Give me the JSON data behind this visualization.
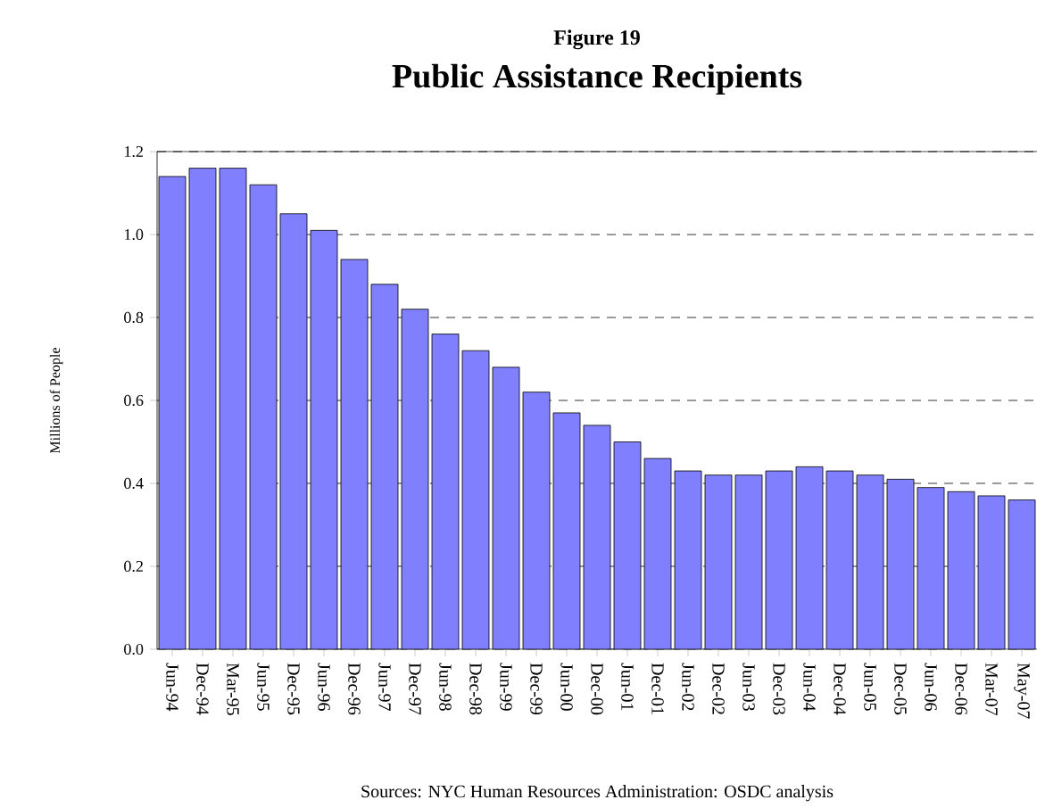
{
  "chart_data": {
    "type": "bar",
    "title": "Public Assistance Recipients",
    "subtitle": "Figure 19",
    "ylabel": "Millions of People",
    "annotations": [
      "Sources:  NYC Human Resources Administration: OSDC analysis"
    ],
    "categories": [
      "Jun-94",
      "Dec-94",
      "Mar-95",
      "Jun-95",
      "Dec-95",
      "Jun-96",
      "Dec-96",
      "Jun-97",
      "Dec-97",
      "Jun-98",
      "Dec-98",
      "Jun-99",
      "Dec-99",
      "Jun-00",
      "Dec-00",
      "Jun-01",
      "Dec-01",
      "Jun-02",
      "Dec-02",
      "Jun-03",
      "Dec-03",
      "Jun-04",
      "Dec-04",
      "Jun-05",
      "Dec-05",
      "Jun-06",
      "Dec-06",
      "Mar-07",
      "May-07"
    ],
    "values": [
      1.14,
      1.16,
      1.16,
      1.12,
      1.05,
      1.01,
      0.94,
      0.88,
      0.82,
      0.76,
      0.72,
      0.68,
      0.62,
      0.57,
      0.54,
      0.5,
      0.46,
      0.43,
      0.42,
      0.42,
      0.43,
      0.44,
      0.43,
      0.42,
      0.41,
      0.39,
      0.38,
      0.37,
      0.36
    ],
    "color": "#8080ff",
    "ylim": [
      0,
      1.2
    ],
    "yticks": [
      {
        "value": 0,
        "label": "0.0"
      },
      {
        "value": 0.2,
        "label": "0.2"
      },
      {
        "value": 0.4,
        "label": "0.4"
      },
      {
        "value": 0.6,
        "label": "0.6"
      },
      {
        "value": 0.8,
        "label": "0.8"
      },
      {
        "value": 1.0,
        "label": "1.0"
      },
      {
        "value": 1.2,
        "label": "1.2"
      }
    ],
    "grid": "y",
    "line_style": "dashed"
  }
}
